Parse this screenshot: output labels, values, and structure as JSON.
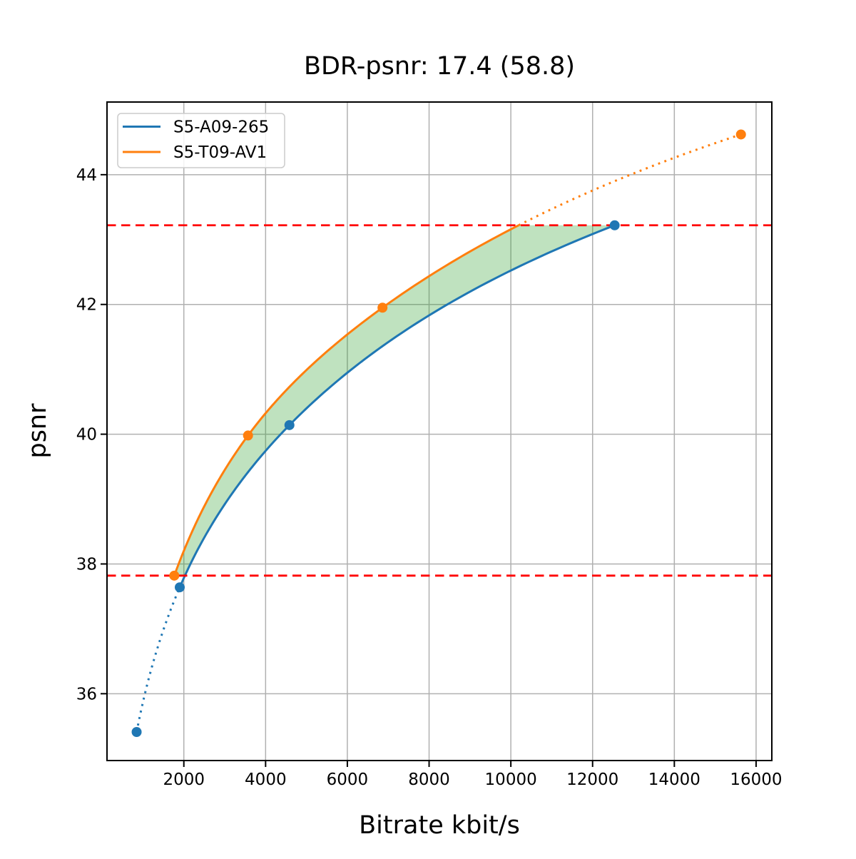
{
  "chart_data": {
    "type": "line",
    "title": "BDR-psnr: 17.4 (58.8)",
    "xlabel": "Bitrate kbit/s",
    "ylabel": "psnr",
    "xlim": [
      120,
      16385
    ],
    "ylim": [
      34.97,
      45.12
    ],
    "xticks": [
      2000,
      4000,
      6000,
      8000,
      10000,
      12000,
      14000,
      16000
    ],
    "yticks": [
      36,
      38,
      40,
      42,
      44
    ],
    "grid": true,
    "grid_color": "#b0b0b0",
    "legend_position": "upper left",
    "series": [
      {
        "name": "S5-A09-265",
        "color": "#1f77b4",
        "marker": "circle",
        "points": [
          [
            845,
            35.41
          ],
          [
            1900,
            37.64
          ],
          [
            4583,
            40.14
          ],
          [
            12540,
            43.22
          ]
        ],
        "dotted_before_point_index": 1
      },
      {
        "name": "S5-T09-AV1",
        "color": "#ff7f0e",
        "marker": "circle",
        "points": [
          [
            1766,
            37.82
          ],
          [
            3570,
            39.98
          ],
          [
            6860,
            41.95
          ],
          [
            15630,
            44.62
          ]
        ],
        "dotted_above_y": 43.22
      }
    ],
    "reference_lines": {
      "values": [
        37.82,
        43.22
      ],
      "color": "#ff0000",
      "style": "dashed"
    },
    "fill_between": {
      "y_range": [
        37.82,
        43.22
      ],
      "color": "#2ca02c",
      "opacity": 0.3
    }
  }
}
